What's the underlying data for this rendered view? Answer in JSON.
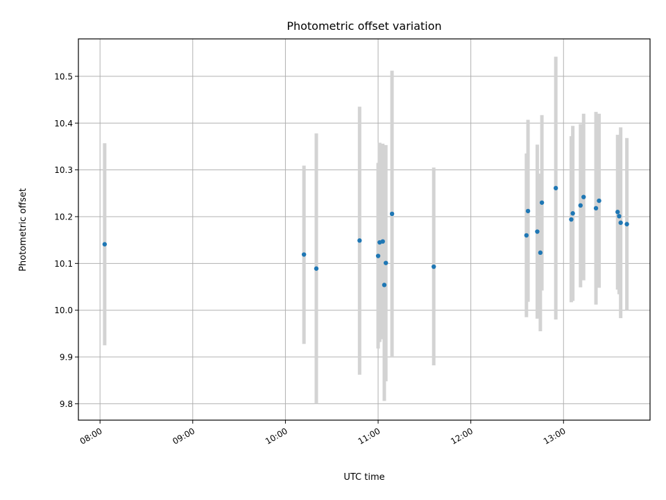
{
  "chart_data": {
    "type": "scatter",
    "title": "Photometric offset variation",
    "xlabel": "UTC time",
    "ylabel": "Photometric offset",
    "x_tick_labels": [
      "08:00",
      "09:00",
      "10:00",
      "11:00",
      "12:00",
      "13:00"
    ],
    "y_tick_labels": [
      "9.8",
      "9.9",
      "10.0",
      "10.1",
      "10.2",
      "10.3",
      "10.4",
      "10.5"
    ],
    "x_range": [
      "07:46",
      "13:56"
    ],
    "ylim": [
      9.765,
      10.58
    ],
    "grid": true,
    "marker_color": "#1f77b4",
    "errorbar_color": "#d3d3d3",
    "points": [
      {
        "t": "08:03",
        "y": 10.141,
        "lo": 9.925,
        "hi": 10.357
      },
      {
        "t": "10:12",
        "y": 10.119,
        "lo": 9.928,
        "hi": 10.309
      },
      {
        "t": "10:20",
        "y": 10.089,
        "lo": 9.8,
        "hi": 10.378
      },
      {
        "t": "10:48",
        "y": 10.149,
        "lo": 9.862,
        "hi": 10.435
      },
      {
        "t": "11:00",
        "y": 10.116,
        "lo": 9.918,
        "hi": 10.315
      },
      {
        "t": "11:01",
        "y": 10.145,
        "lo": 9.932,
        "hi": 10.358
      },
      {
        "t": "11:03",
        "y": 10.147,
        "lo": 9.938,
        "hi": 10.356
      },
      {
        "t": "11:04",
        "y": 10.054,
        "lo": 9.806,
        "hi": 10.302
      },
      {
        "t": "11:05",
        "y": 10.101,
        "lo": 9.848,
        "hi": 10.353
      },
      {
        "t": "11:09",
        "y": 10.206,
        "lo": 9.9,
        "hi": 10.512
      },
      {
        "t": "11:36",
        "y": 10.093,
        "lo": 9.882,
        "hi": 10.305
      },
      {
        "t": "12:36",
        "y": 10.16,
        "lo": 9.985,
        "hi": 10.335
      },
      {
        "t": "12:37",
        "y": 10.212,
        "lo": 10.018,
        "hi": 10.407
      },
      {
        "t": "12:43",
        "y": 10.168,
        "lo": 9.982,
        "hi": 10.354
      },
      {
        "t": "12:45",
        "y": 10.123,
        "lo": 9.955,
        "hi": 10.292
      },
      {
        "t": "12:46",
        "y": 10.23,
        "lo": 10.042,
        "hi": 10.417
      },
      {
        "t": "12:55",
        "y": 10.261,
        "lo": 9.98,
        "hi": 10.542
      },
      {
        "t": "13:05",
        "y": 10.194,
        "lo": 10.017,
        "hi": 10.372
      },
      {
        "t": "13:06",
        "y": 10.207,
        "lo": 10.02,
        "hi": 10.394
      },
      {
        "t": "13:11",
        "y": 10.224,
        "lo": 10.049,
        "hi": 10.398
      },
      {
        "t": "13:13",
        "y": 10.242,
        "lo": 10.064,
        "hi": 10.42
      },
      {
        "t": "13:21",
        "y": 10.218,
        "lo": 10.012,
        "hi": 10.424
      },
      {
        "t": "13:23",
        "y": 10.234,
        "lo": 10.048,
        "hi": 10.42
      },
      {
        "t": "13:35",
        "y": 10.21,
        "lo": 10.044,
        "hi": 10.375
      },
      {
        "t": "13:36",
        "y": 10.201,
        "lo": 10.034,
        "hi": 10.369
      },
      {
        "t": "13:37",
        "y": 10.187,
        "lo": 9.983,
        "hi": 10.391
      },
      {
        "t": "13:41",
        "y": 10.184,
        "lo": 10.0,
        "hi": 10.368
      }
    ]
  }
}
